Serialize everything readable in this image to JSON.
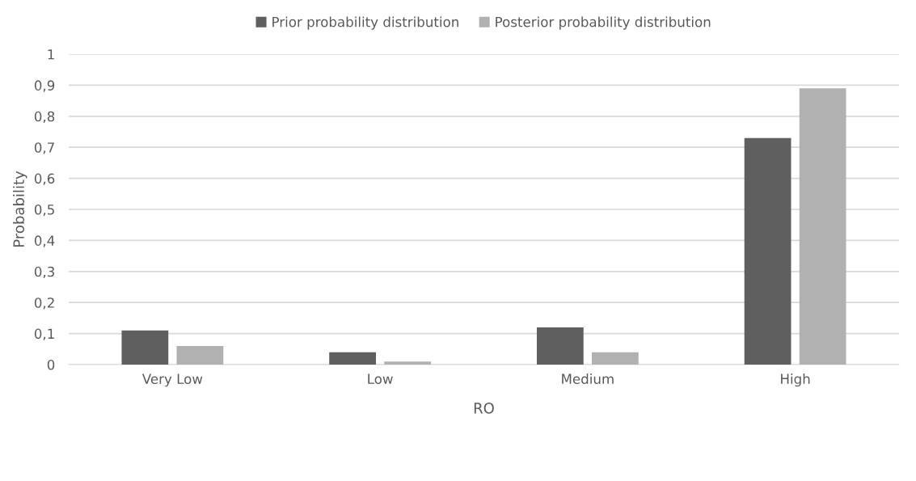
{
  "chart_data": {
    "type": "bar",
    "xlabel": "RO",
    "ylabel": "Probability",
    "categories": [
      "Very Low",
      "Low",
      "Medium",
      "High"
    ],
    "series": [
      {
        "name": "Prior probability distribution",
        "color": "#5f5f5f",
        "values": [
          0.11,
          0.04,
          0.12,
          0.73
        ]
      },
      {
        "name": "Posterior probability distribution",
        "color": "#b1b1b1",
        "values": [
          0.06,
          0.01,
          0.04,
          0.89
        ]
      }
    ],
    "ylim": [
      0,
      1
    ],
    "yticks": [
      0,
      {
        "value": 0.1,
        "label": "0,1"
      },
      {
        "value": 0.2,
        "label": "0,2"
      },
      {
        "value": 0.3,
        "label": "0,3"
      },
      {
        "value": 0.4,
        "label": "0,4"
      },
      {
        "value": 0.5,
        "label": "0,5"
      },
      {
        "value": 0.6,
        "label": "0,6"
      },
      {
        "value": 0.7,
        "label": "0,7"
      },
      {
        "value": 0.8,
        "label": "0,8"
      },
      {
        "value": 0.9,
        "label": "0,9"
      },
      1
    ],
    "grid": "y",
    "legend": "top"
  }
}
